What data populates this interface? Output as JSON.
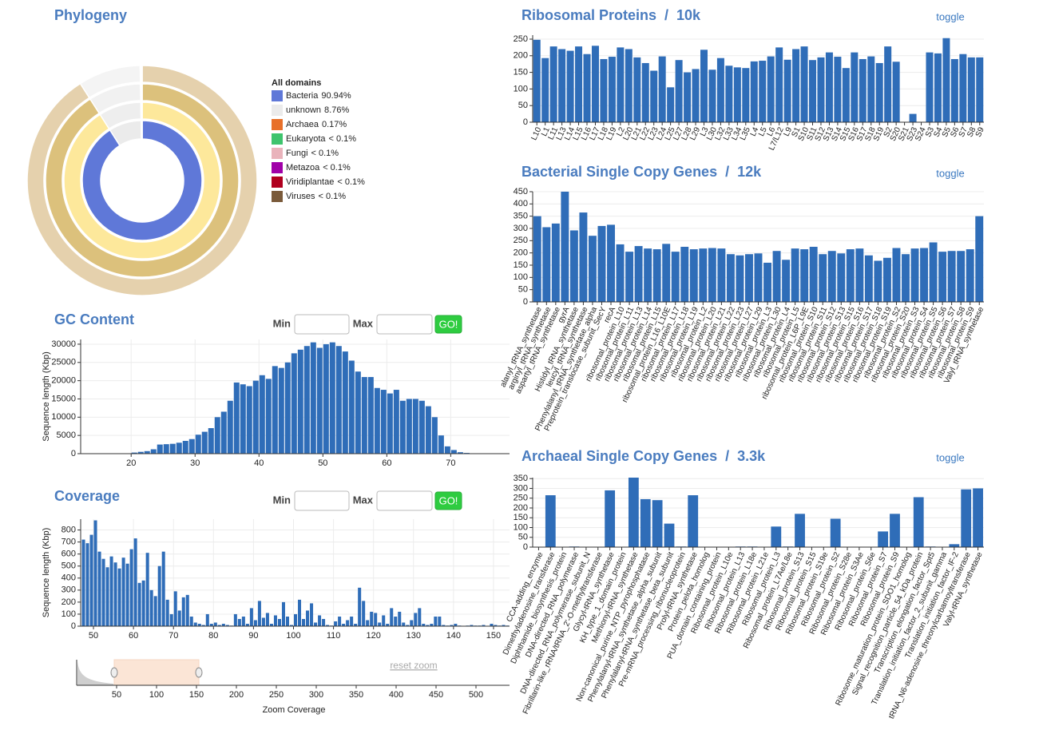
{
  "chart_data": [
    {
      "type": "sunburst",
      "title": "Phylogeny",
      "legend_title": "All domains",
      "categories": [
        "Bacteria",
        "unknown",
        "Archaea",
        "Eukaryota",
        "Fungi",
        "Metazoa",
        "Viridiplantae",
        "Viruses"
      ],
      "values": [
        90.94,
        8.76,
        0.17,
        0.05,
        0.03,
        0.01,
        0.01,
        0.01
      ],
      "value_labels": [
        "90.94%",
        "8.76%",
        "0.17%",
        "< 0.1%",
        "< 0.1%",
        "< 0.1%",
        "< 0.1%",
        "< 0.1%"
      ],
      "colors": [
        "#5f78d8",
        "#ebebeb",
        "#e8702a",
        "#3ec46d",
        "#e9b3bb",
        "#a000a8",
        "#b0001e",
        "#7a5a3a"
      ]
    },
    {
      "type": "histogram",
      "title": "GC Content",
      "ylabel": "Sequence length (Kbp)",
      "color": "#2f6db8",
      "grid": true,
      "controls": {
        "min_label": "Min",
        "max_label": "Max",
        "button": "GO!"
      },
      "bins": [
        20,
        21,
        22,
        23,
        24,
        25,
        26,
        27,
        28,
        29,
        30,
        31,
        32,
        33,
        34,
        35,
        36,
        37,
        38,
        39,
        40,
        41,
        42,
        43,
        44,
        45,
        46,
        47,
        48,
        49,
        50,
        51,
        52,
        53,
        54,
        55,
        56,
        57,
        58,
        59,
        60,
        61,
        62,
        63,
        64,
        65,
        66,
        67,
        68,
        69,
        70,
        71,
        72,
        73
      ],
      "values": [
        300,
        500,
        700,
        1200,
        2500,
        2600,
        2700,
        3000,
        3500,
        4000,
        5200,
        6000,
        7000,
        10000,
        11500,
        14500,
        19500,
        19000,
        18500,
        20000,
        21500,
        20500,
        24000,
        23500,
        25000,
        27500,
        28500,
        29500,
        30500,
        29000,
        30000,
        30500,
        29500,
        28000,
        25500,
        22500,
        21000,
        21000,
        18000,
        17500,
        16500,
        17500,
        14500,
        15000,
        15000,
        14500,
        13000,
        10000,
        5000,
        2000,
        1000,
        400,
        200
      ],
      "xlim": [
        12.1,
        79.2
      ],
      "xticks": [
        20,
        30,
        40,
        50,
        60,
        70
      ],
      "ylim": [
        0,
        31300
      ],
      "yticks": [
        0,
        5000,
        10000,
        15000,
        20000,
        25000,
        30000
      ]
    },
    {
      "type": "histogram",
      "title": "Coverage",
      "ylabel": "Sequence length (Kbp)",
      "color": "#2f6db8",
      "grid": true,
      "controls": {
        "min_label": "Min",
        "max_label": "Max",
        "button": "GO!"
      },
      "bins": [
        47,
        48,
        49,
        50,
        51,
        52,
        53,
        54,
        55,
        56,
        57,
        58,
        59,
        60,
        61,
        62,
        63,
        64,
        65,
        66,
        67,
        68,
        69,
        70,
        71,
        72,
        73,
        74,
        75,
        76,
        77,
        78,
        79,
        80,
        81,
        82,
        83,
        84,
        85,
        86,
        87,
        88,
        89,
        90,
        91,
        92,
        93,
        94,
        95,
        96,
        97,
        98,
        99,
        100,
        101,
        102,
        103,
        104,
        105,
        106,
        107,
        108,
        109,
        110,
        111,
        112,
        113,
        114,
        115,
        116,
        117,
        118,
        119,
        120,
        121,
        122,
        123,
        124,
        125,
        126,
        127,
        128,
        129,
        130,
        131,
        132,
        133,
        134,
        135,
        136,
        137,
        138,
        139,
        140,
        141,
        142,
        143,
        144,
        145,
        146,
        147,
        148,
        149,
        150,
        151,
        152,
        153,
        154
      ],
      "values": [
        720,
        690,
        760,
        880,
        620,
        560,
        490,
        580,
        530,
        480,
        570,
        520,
        640,
        730,
        360,
        380,
        610,
        300,
        250,
        500,
        620,
        220,
        100,
        290,
        130,
        240,
        260,
        80,
        30,
        20,
        10,
        100,
        20,
        30,
        10,
        20,
        10,
        5,
        100,
        60,
        80,
        20,
        150,
        50,
        210,
        70,
        110,
        20,
        90,
        60,
        200,
        80,
        10,
        100,
        220,
        60,
        130,
        190,
        30,
        90,
        60,
        10,
        5,
        40,
        80,
        20,
        50,
        80,
        20,
        320,
        210,
        50,
        120,
        110,
        30,
        90,
        20,
        150,
        80,
        120,
        30,
        10,
        50,
        110,
        150,
        20,
        10,
        20,
        80,
        80,
        10,
        5,
        10,
        20,
        5,
        0,
        5,
        10,
        5,
        5,
        10,
        0,
        20,
        10,
        5,
        10,
        5
      ],
      "xlim": [
        46.8,
        154
      ],
      "xticks": [
        50,
        60,
        70,
        80,
        90,
        100,
        110,
        120,
        130,
        140,
        150
      ],
      "ylim": [
        0,
        890
      ],
      "yticks": [
        0,
        100,
        200,
        300,
        400,
        500,
        600,
        700,
        800
      ]
    },
    {
      "type": "brush",
      "xlabel": "Zoom Coverage",
      "reset": "reset zoom",
      "selection": [
        47,
        153
      ],
      "xlim": [
        0,
        542
      ],
      "xticks": [
        50,
        100,
        150,
        200,
        250,
        300,
        350,
        400,
        450,
        500
      ]
    },
    {
      "type": "bar",
      "title": "Ribosomal Proteins  /  10k",
      "toggle": "toggle",
      "color": "#2f6db8",
      "grid": true,
      "categories": [
        "L10",
        "L1",
        "L11",
        "L13",
        "L14",
        "L15",
        "L16",
        "L17",
        "L18",
        "L19",
        "L2",
        "L20",
        "L21",
        "L22",
        "L23",
        "L24",
        "L25",
        "L27",
        "L28",
        "L29",
        "L3",
        "L30",
        "L32",
        "L33",
        "L34",
        "L35",
        "L4",
        "L5",
        "L6",
        "L7/L12",
        "L9",
        "S1",
        "S10",
        "S11",
        "S12",
        "S13",
        "S14",
        "S15",
        "S16",
        "S17",
        "S18",
        "S19",
        "S2",
        "S20",
        "S21",
        "S23",
        "S24",
        "S3",
        "S4",
        "S5",
        "S6",
        "S7",
        "S8",
        "S9"
      ],
      "values": [
        248,
        193,
        228,
        220,
        215,
        228,
        205,
        230,
        190,
        197,
        225,
        220,
        195,
        178,
        155,
        198,
        105,
        187,
        150,
        160,
        218,
        158,
        193,
        170,
        165,
        163,
        183,
        185,
        198,
        225,
        188,
        220,
        228,
        187,
        195,
        210,
        197,
        163,
        210,
        190,
        198,
        178,
        228,
        182,
        0,
        25,
        0,
        210,
        207,
        253,
        190,
        205,
        195,
        195
      ],
      "ylim": [
        0,
        262
      ],
      "yticks": [
        0,
        50,
        100,
        150,
        200,
        250
      ]
    },
    {
      "type": "bar",
      "title": "Bacterial Single Copy Genes  /  12k",
      "toggle": "toggle",
      "color": "#2f6db8",
      "grid": true,
      "categories": [
        "alanyl_tRNA_synthetase",
        "arginyl_tRNA_synthetase",
        "aspartyl_tRNA_synthetase",
        "gyrA",
        "Histidyl_tRNA_synthetase",
        "leucyl_tRNA_synthetase",
        "Phenylalanyl_tRNA_synthetase_alpha",
        "Preprotein_translocase_subunit_SecY",
        "recA",
        "ribosomal_protein_L10",
        "ribosomal_protein_L11",
        "ribosomal_protein_L13",
        "ribosomal_protein_L14",
        "ribosomal_protein_L15",
        "ribosomal_protein_L16_L10E",
        "ribosomal_protein_L17",
        "ribosomal_protein_L18",
        "ribosomal_protein_L19",
        "ribosomal_protein_L2",
        "ribosomal_protein_L20",
        "ribosomal_protein_L21",
        "ribosomal_protein_L22",
        "ribosomal_protein_L23",
        "ribosomal_protein_L27",
        "ribosomal_protein_L29",
        "ribosomal_protein_L3",
        "ribosomal_protein_L30",
        "ribosomal_protein_L4",
        "ribosomal_protein_L5",
        "ribosomal_protein_L6P_L9E",
        "ribosomal_protein_S10",
        "ribosomal_protein_S11",
        "ribosomal_protein_S12",
        "ribosomal_protein_S13",
        "ribosomal_protein_S15",
        "ribosomal_protein_S16",
        "ribosomal_protein_S17",
        "ribosomal_protein_S18",
        "ribosomal_protein_S19",
        "ribosomal_protein_S2",
        "ribosomal_protein_S20",
        "ribosomal_protein_S3",
        "ribosomal_protein_S4",
        "ribosomal_protein_S5",
        "ribosomal_protein_S6",
        "ribosomal_protein_S7",
        "ribosomal_protein_S8",
        "ribosomal_protein_S9",
        "Valyl_tRNA_synthetase"
      ],
      "values": [
        350,
        305,
        320,
        450,
        292,
        365,
        270,
        310,
        315,
        235,
        205,
        228,
        218,
        215,
        237,
        205,
        225,
        215,
        218,
        220,
        218,
        195,
        190,
        195,
        198,
        160,
        208,
        172,
        218,
        215,
        225,
        195,
        208,
        198,
        215,
        218,
        190,
        168,
        180,
        220,
        195,
        218,
        220,
        243,
        205,
        208,
        208,
        215,
        350
      ],
      "ylim": [
        0,
        450
      ],
      "yticks": [
        0,
        50,
        100,
        150,
        200,
        250,
        300,
        350,
        400,
        450
      ]
    },
    {
      "type": "bar",
      "title": "Archaeal Single Copy Genes  /  3.3k",
      "toggle": "toggle",
      "color": "#2f6db8",
      "grid": true,
      "categories": [
        "CCA-adding_enzyme",
        "Dimethyladenosine_transferase",
        "Diphthamide_biosynthesis_protein",
        "DNA-directed_RNA_polymerase",
        "DNA-directed_RNA_polymerase_subunit_N",
        "Fibrillarin-like_rRNA/tRNA_2'-O-methyltransferase",
        "Glycyl-tRNA_synthetase",
        "KH_type_1_domain_protein",
        "Methionyl-tRNA_synthetase",
        "Non-canonical_purine_NTP_pyrophosphatase",
        "Phenylalanyl-tRNA_synthetase_alpha_subunit",
        "Phenylalanyl-tRNA_synthetase_beta_subunit",
        "Pre-mRNA_processing_ribonucleoprotein",
        "Prolyl-tRNA_synthetase",
        "Protein_pelota_homolog",
        "PUA_domain_containing_protein",
        "Ribosomal_protein_L10e",
        "Ribosomal_protein_L13",
        "Ribosomal_protein_L18e",
        "Ribosomal_protein_L21e",
        "Ribosomal_protein_L3",
        "Ribosomal_protein_L7Ae/L8e",
        "Ribosomal_protein_S13",
        "Ribosomal_protein_S15",
        "Ribosomal_protein_S19e",
        "Ribosomal_protein_S2",
        "Ribosomal_protein_S28e",
        "Ribosomal_protein_S3Ae",
        "Ribosomal_protein_S6e",
        "Ribosomal_protein_S7",
        "Ribosomal_protein_S9",
        "Ribosome_maturation_protein_SDO1_homolog",
        "Signal_recognition_particle_54_kDa_protein",
        "Transcription_elongation_factor_Spt5",
        "Translation_initiation_factor_2_subunit_gamma",
        "Translation_initiation_factor_IF-2",
        "tRNA_N6-adenosine_threonylcarbamoyltransferase",
        "Valyl-tRNA_synthetase"
      ],
      "values": [
        0,
        265,
        0,
        3,
        0,
        0,
        290,
        0,
        355,
        245,
        240,
        120,
        3,
        265,
        0,
        0,
        0,
        3,
        3,
        0,
        105,
        3,
        170,
        0,
        0,
        145,
        0,
        0,
        0,
        80,
        170,
        0,
        255,
        3,
        0,
        15,
        295,
        300
      ],
      "ylim": [
        0,
        355
      ],
      "yticks": [
        0,
        50,
        100,
        150,
        200,
        250,
        300,
        350
      ]
    }
  ]
}
